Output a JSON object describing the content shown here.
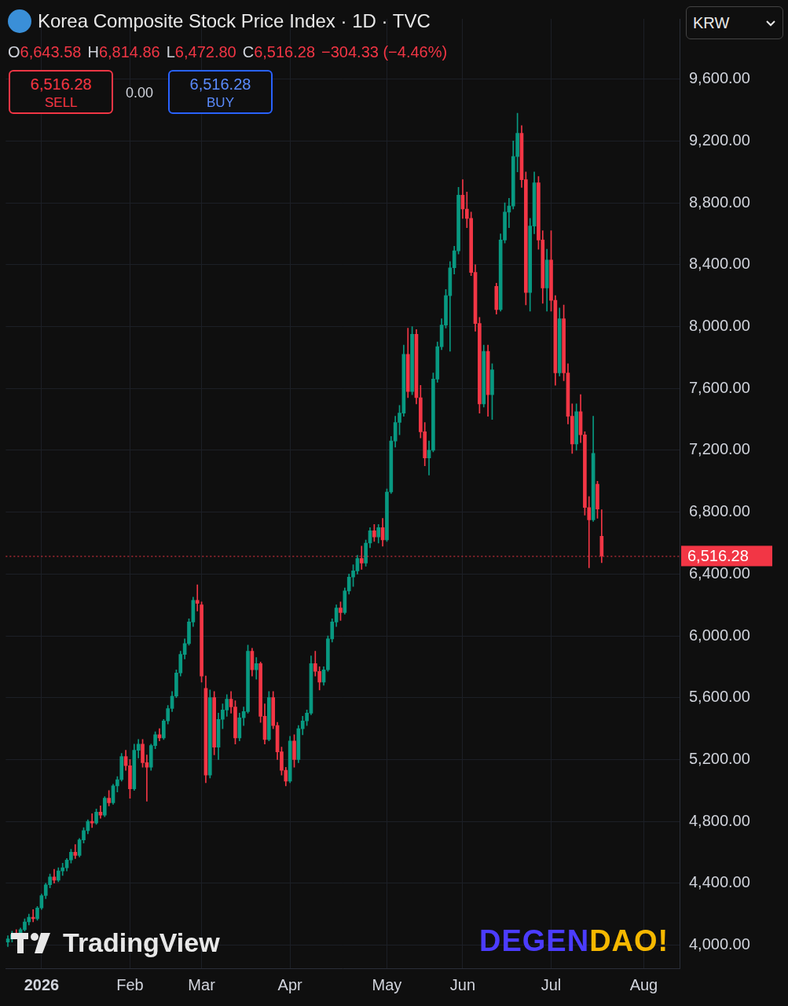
{
  "header": {
    "title": "Korea Composite Stock Price Index · 1D · TVC",
    "ohlc": [
      {
        "label": "O",
        "value": "6,643.58"
      },
      {
        "label": "H",
        "value": "6,814.86"
      },
      {
        "label": "L",
        "value": "6,472.80"
      },
      {
        "label": "C",
        "value": "6,516.28"
      }
    ],
    "change": "−304.33 (−4.46%)",
    "sell": {
      "price": "6,516.28",
      "label": "SELL"
    },
    "spread": "0.00",
    "buy": {
      "price": "6,516.28",
      "label": "BUY"
    },
    "currency": "KRW"
  },
  "watermarks": [
    "TradingView",
    "DEGENDAO!"
  ],
  "chart_data": {
    "type": "candlestick",
    "categories": [
      null,
      null,
      null,
      null,
      null,
      null,
      null,
      null,
      "2026",
      null,
      null,
      null,
      null,
      null,
      null,
      null,
      null,
      null,
      null,
      null,
      null,
      null,
      null,
      null,
      null,
      null,
      null,
      null,
      null,
      "Feb",
      null,
      null,
      null,
      null,
      null,
      null,
      null,
      null,
      null,
      null,
      null,
      null,
      null,
      null,
      null,
      null,
      "Mar",
      null,
      null,
      null,
      null,
      null,
      null,
      null,
      null,
      null,
      null,
      null,
      null,
      null,
      null,
      null,
      null,
      null,
      null,
      null,
      null,
      "Apr",
      null,
      null,
      null,
      null,
      null,
      null,
      null,
      null,
      null,
      null,
      null,
      null,
      null,
      null,
      null,
      null,
      null,
      null,
      null,
      null,
      null,
      null,
      "May",
      null,
      null,
      null,
      null,
      null,
      null,
      null,
      null,
      null,
      null,
      null,
      null,
      null,
      null,
      null,
      null,
      null,
      "Jun",
      null,
      null,
      null,
      null,
      null,
      null,
      null,
      null,
      null,
      null,
      null,
      null,
      null,
      null,
      null,
      null,
      null,
      null,
      null,
      null,
      "Jul",
      null,
      null,
      null,
      null,
      null,
      null,
      null,
      null,
      null,
      null,
      null,
      null,
      null,
      null,
      null,
      null,
      null,
      null,
      null,
      null,
      null,
      "Aug",
      null,
      null,
      null,
      null,
      null,
      null,
      null,
      null
    ],
    "open": [
      4020,
      4040,
      4070,
      4060,
      4100,
      4150,
      4180,
      4170,
      4240,
      4320,
      4390,
      4440,
      4420,
      4480,
      4500,
      4550,
      4600,
      4580,
      4680,
      4740,
      4800,
      4790,
      4860,
      4840,
      4950,
      4920,
      5030,
      5070,
      5220,
      5160,
      5010,
      5260,
      5300,
      5180,
      5150,
      5290,
      5360,
      5340,
      5450,
      5530,
      5610,
      5760,
      5880,
      5950,
      6090,
      6230,
      6200,
      5660,
      5100,
      5600,
      5280,
      5460,
      5520,
      5590,
      5540,
      5340,
      5470,
      5510,
      5900,
      5780,
      5820,
      5480,
      5330,
      5600,
      5420,
      5250,
      5130,
      5060,
      5320,
      5200,
      5400,
      5450,
      5500,
      5820,
      5770,
      5700,
      5780,
      5980,
      6090,
      6180,
      6150,
      6290,
      6380,
      6420,
      6500,
      6470,
      6600,
      6680,
      6640,
      6700,
      6620,
      6930,
      7260,
      7380,
      7440,
      7820,
      7580,
      7950,
      7540,
      7320,
      7150,
      7200,
      7660,
      7870,
      8010,
      8200,
      8380,
      8490,
      8850,
      8760,
      8700,
      8350,
      8020,
      7500,
      7840,
      7560,
      8260,
      8110,
      8560,
      8740,
      8780,
      9100,
      9250,
      8950,
      8220,
      8650,
      8930,
      8560,
      8250,
      8430,
      8170,
      7700,
      8050,
      7700,
      7420,
      7240,
      7450,
      7300,
      6830,
      6750,
      6980,
      6643.58,
      null,
      null,
      null,
      null,
      null,
      null,
      null,
      null,
      null,
      null,
      null,
      null,
      null,
      null,
      null,
      null,
      null,
      null
    ],
    "high": [
      4060,
      4090,
      4100,
      4110,
      4170,
      4200,
      4230,
      4250,
      4330,
      4400,
      4460,
      4490,
      4500,
      4530,
      4560,
      4620,
      4650,
      4690,
      4760,
      4810,
      4850,
      4880,
      4900,
      4960,
      5000,
      5040,
      5090,
      5240,
      5260,
      5200,
      5300,
      5330,
      5330,
      5230,
      5300,
      5380,
      5400,
      5460,
      5550,
      5640,
      5780,
      5900,
      5980,
      6110,
      6250,
      6330,
      6220,
      5740,
      5650,
      5640,
      5500,
      5560,
      5620,
      5640,
      5580,
      5500,
      5540,
      5940,
      5920,
      5860,
      5830,
      5560,
      5640,
      5640,
      5440,
      5280,
      5150,
      5350,
      5360,
      5420,
      5480,
      5520,
      5870,
      5900,
      5800,
      5800,
      6000,
      6110,
      6200,
      6220,
      6310,
      6400,
      6460,
      6520,
      6580,
      6620,
      6700,
      6720,
      6720,
      6760,
      6950,
      7290,
      7420,
      7490,
      7880,
      7990,
      8000,
      7980,
      7620,
      7380,
      7260,
      7700,
      7900,
      8050,
      8240,
      8420,
      8520,
      8900,
      8950,
      8870,
      8740,
      8400,
      8060,
      7880,
      7880,
      7760,
      8280,
      8600,
      8800,
      8830,
      9200,
      9380,
      9300,
      9000,
      8700,
      9000,
      8970,
      8620,
      8500,
      8620,
      8200,
      8120,
      8140,
      7760,
      7500,
      7500,
      7560,
      7320,
      6900,
      7420,
      7000,
      6814.86,
      null,
      null,
      null,
      null,
      null,
      null,
      null,
      null,
      null,
      null,
      null,
      null,
      null,
      null,
      null,
      null,
      null,
      null
    ],
    "low": [
      3990,
      4020,
      4040,
      4050,
      4090,
      4130,
      4150,
      4160,
      4230,
      4300,
      4370,
      4400,
      4410,
      4450,
      4480,
      4530,
      4560,
      4570,
      4660,
      4720,
      4760,
      4780,
      4820,
      4830,
      4900,
      4910,
      4990,
      5060,
      5130,
      4950,
      5000,
      5210,
      5150,
      4930,
      5130,
      5270,
      5320,
      5330,
      5430,
      5510,
      5600,
      5740,
      5850,
      5940,
      6060,
      6160,
      5700,
      5050,
      5080,
      5230,
      5200,
      5400,
      5480,
      5500,
      5300,
      5320,
      5420,
      5500,
      5740,
      5720,
      5440,
      5300,
      5320,
      5400,
      5200,
      5100,
      5030,
      5050,
      5150,
      5180,
      5360,
      5420,
      5490,
      5740,
      5650,
      5680,
      5770,
      5960,
      6060,
      6100,
      6140,
      6270,
      6320,
      6400,
      6430,
      6450,
      6570,
      6610,
      6600,
      6580,
      6610,
      6920,
      7220,
      7300,
      7420,
      7540,
      7560,
      7500,
      7280,
      7100,
      7040,
      7190,
      7640,
      7850,
      7990,
      7840,
      8340,
      8470,
      8700,
      8640,
      8330,
      7970,
      7440,
      7480,
      7420,
      7400,
      8080,
      8100,
      8540,
      8640,
      8760,
      9000,
      8900,
      8140,
      8100,
      8600,
      8500,
      8150,
      8100,
      8100,
      7620,
      7680,
      7650,
      7370,
      7180,
      7200,
      7250,
      6780,
      6440,
      6740,
      6760,
      6472.8,
      null,
      null,
      null,
      null,
      null,
      null,
      null,
      null,
      null,
      null,
      null,
      null,
      null,
      null,
      null,
      null,
      null,
      null
    ],
    "close": [
      4040,
      4070,
      4060,
      4100,
      4150,
      4180,
      4170,
      4240,
      4320,
      4390,
      4440,
      4420,
      4480,
      4500,
      4550,
      4600,
      4580,
      4680,
      4740,
      4800,
      4790,
      4860,
      4840,
      4950,
      4920,
      5030,
      5070,
      5220,
      5160,
      5010,
      5260,
      5300,
      5180,
      5150,
      5290,
      5360,
      5340,
      5450,
      5530,
      5610,
      5760,
      5880,
      5950,
      6090,
      6230,
      6210,
      5740,
      5100,
      5600,
      5280,
      5460,
      5520,
      5590,
      5540,
      5340,
      5470,
      5510,
      5900,
      5780,
      5820,
      5480,
      5330,
      5600,
      5420,
      5250,
      5130,
      5060,
      5320,
      5200,
      5400,
      5450,
      5500,
      5820,
      5770,
      5700,
      5780,
      5980,
      6090,
      6180,
      6150,
      6290,
      6380,
      6420,
      6500,
      6470,
      6600,
      6680,
      6640,
      6700,
      6620,
      6930,
      7260,
      7380,
      7440,
      7820,
      7580,
      7950,
      7540,
      7320,
      7150,
      7200,
      7660,
      7870,
      8010,
      8200,
      8380,
      8490,
      8850,
      8760,
      8700,
      8350,
      8020,
      7500,
      7840,
      7560,
      7720,
      8110,
      8560,
      8740,
      8780,
      9100,
      9250,
      8950,
      8220,
      8650,
      8930,
      8560,
      8250,
      8430,
      8170,
      7700,
      8050,
      7700,
      7420,
      7240,
      7450,
      7300,
      6830,
      6750,
      7180,
      6820.61,
      6516.28,
      null,
      null,
      null,
      null,
      null,
      null,
      null,
      null,
      null,
      null,
      null,
      null,
      null,
      null,
      null,
      null,
      null,
      null
    ],
    "color": {
      "up": "#089981",
      "down": "#f23645"
    },
    "ylim": [
      3850,
      9990
    ],
    "yticks": [
      {
        "value": 4000,
        "label": "4,000.00"
      },
      {
        "value": 4400,
        "label": "4,400.00"
      },
      {
        "value": 4800,
        "label": "4,800.00"
      },
      {
        "value": 5200,
        "label": "5,200.00"
      },
      {
        "value": 5600,
        "label": "5,600.00"
      },
      {
        "value": 6000,
        "label": "6,000.00"
      },
      {
        "value": 6400,
        "label": "6,400.00"
      },
      {
        "value": 6800,
        "label": "6,800.00"
      },
      {
        "value": 7200,
        "label": "7,200.00"
      },
      {
        "value": 7600,
        "label": "7,600.00"
      },
      {
        "value": 8000,
        "label": "8,000.00"
      },
      {
        "value": 8400,
        "label": "8,400.00"
      },
      {
        "value": 8800,
        "label": "8,800.00"
      },
      {
        "value": 9200,
        "label": "9,200.00"
      },
      {
        "value": 9600,
        "label": "9,600.00"
      }
    ],
    "grid": true,
    "last_price": 6516.28,
    "last_price_label": "6,516.28"
  }
}
